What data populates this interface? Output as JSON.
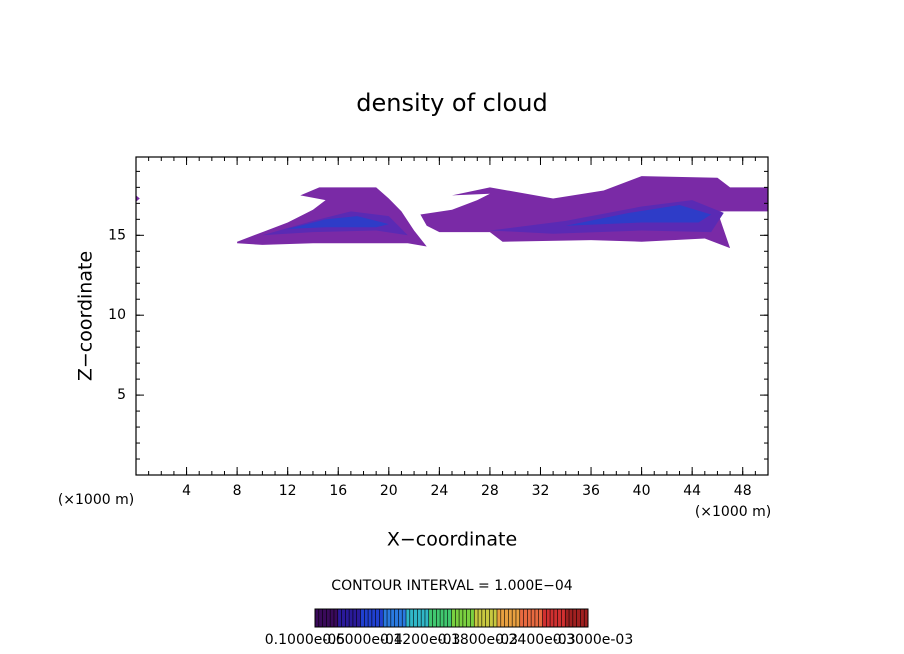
{
  "chart_data": {
    "type": "contour",
    "title": "density of cloud",
    "x_label": "X−coordinate",
    "y_label": "Z−coordinate",
    "x_unit_left": "(×1000 m)",
    "x_unit_right": "(×1000 m)",
    "contour_interval": "CONTOUR INTERVAL = 1.000E−04",
    "xlim": [
      0,
      50
    ],
    "ylim": [
      0,
      19.9
    ],
    "xticks": [
      4,
      8,
      12,
      16,
      20,
      24,
      28,
      32,
      36,
      40,
      44,
      48
    ],
    "yticks": [
      5,
      10,
      15
    ],
    "regions": [
      {
        "color": "#7a2aa6",
        "x": [
          8,
          10,
          12,
          14,
          15,
          13,
          14.5,
          19,
          20,
          21,
          22,
          23,
          21.5,
          18,
          14,
          10,
          8
        ],
        "y": [
          14.6,
          15.2,
          15.8,
          16.6,
          17.2,
          17.5,
          18,
          18,
          17.3,
          16.5,
          15.3,
          14.3,
          14.5,
          14.5,
          14.5,
          14.4,
          14.5
        ]
      },
      {
        "color": "#7a2aa6",
        "x": [
          22.5,
          25,
          27,
          28,
          25,
          28,
          33,
          37,
          40,
          46,
          47,
          50,
          50,
          46,
          47,
          45,
          40,
          36,
          29,
          28,
          24,
          23
        ],
        "y": [
          16.3,
          16.6,
          17.2,
          17.6,
          17.5,
          18,
          17.3,
          17.8,
          18.7,
          18.6,
          18,
          18,
          16.5,
          16.5,
          14.2,
          14.8,
          14.6,
          14.7,
          14.6,
          15.2,
          15.2,
          15.6
        ]
      },
      {
        "color": "#5a2ab4",
        "x": [
          10,
          14,
          17,
          20,
          21.5,
          19,
          14
        ],
        "y": [
          15,
          15.9,
          16.5,
          16.2,
          15,
          15.3,
          15.2
        ]
      },
      {
        "color": "#5a2ab4",
        "x": [
          28,
          34,
          40,
          44,
          46.5,
          45.5,
          40,
          33
        ],
        "y": [
          15.3,
          15.9,
          16.8,
          17.2,
          16.4,
          15.2,
          15.3,
          15.1
        ]
      },
      {
        "color": "#2e3cc8",
        "x": [
          12,
          15,
          17.5,
          20,
          19,
          15
        ],
        "y": [
          15.4,
          16,
          16.2,
          15.7,
          15.5,
          15.5
        ]
      },
      {
        "color": "#2e3cc8",
        "x": [
          34,
          39,
          43,
          45.5,
          44.5,
          40
        ],
        "y": [
          15.6,
          16.4,
          16.9,
          16.3,
          15.8,
          15.8
        ]
      },
      {
        "color": "#7a2aa6",
        "x": [
          0,
          0.3,
          0
        ],
        "y": [
          17.1,
          17.3,
          17.5
        ]
      }
    ],
    "colorbar": {
      "colors": [
        "#3a0a5a",
        "#2a1a9a",
        "#2040d0",
        "#2a7ae0",
        "#30b8c8",
        "#40c870",
        "#7ad040",
        "#c8c840",
        "#e8a040",
        "#e86a40",
        "#d03030",
        "#a02020"
      ],
      "labels": [
        "0.1000e-05",
        "0.6000e-04",
        "0.1200e-03",
        "0.1800e-03",
        "0.2400e-03",
        "0.3000e-03"
      ]
    }
  }
}
